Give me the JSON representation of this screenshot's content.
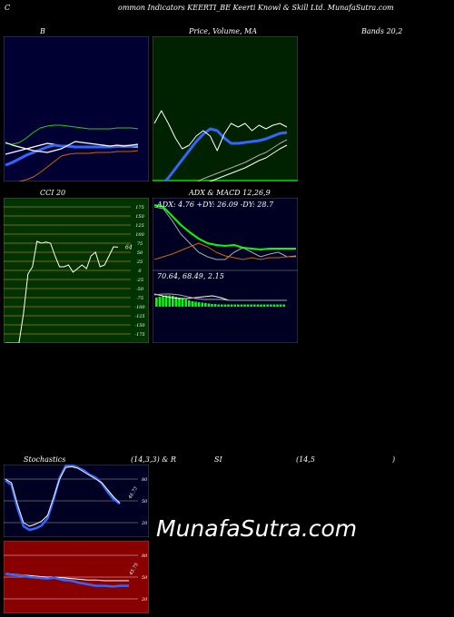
{
  "header": {
    "title": "ommon  Indicators KEERTI_BE Keerti  Knowl & Skill Ltd. MunafaSutra.com",
    "prefix": "C"
  },
  "labels": {
    "bb": "B",
    "price_ma": "Price,  Volume,  MA",
    "bands": "Bands 20,2",
    "cci": "CCI 20",
    "adx_macd": "ADX  & MACD 12,26,9",
    "stoch": "Stochastics",
    "stoch_params": "(14,3,3) & R",
    "si": "SI",
    "rsi_params": "(14,5",
    "close_paren": ")"
  },
  "watermark": "MunafaSutra.com",
  "colors": {
    "band_bg": "#000033",
    "price_bg": "#002200",
    "cci_bg": "#003300",
    "stoch_bg": "#000022",
    "rsi_bg": "#880000",
    "accent_blue": "#3366ff",
    "green": "#00ff00"
  },
  "chart_data": [
    {
      "name_ref": "bb",
      "type": "line",
      "series": [
        {
          "values": [
            118,
            119,
            117,
            112,
            106,
            101,
            99,
            98,
            98,
            99,
            100,
            101,
            102,
            102,
            102,
            102,
            101,
            101,
            101,
            102
          ]
        },
        {
          "values": [
            130,
            128,
            126,
            124,
            122,
            120,
            118,
            119,
            121,
            122,
            122,
            122,
            122,
            122,
            122,
            122,
            122,
            122,
            122,
            122
          ]
        },
        {
          "values": [
            166,
            163,
            160,
            158,
            155,
            150,
            144,
            138,
            132,
            130,
            129,
            129,
            129,
            128,
            128,
            128,
            127,
            127,
            127,
            126
          ]
        },
        {
          "values": [
            142,
            139,
            135,
            131,
            128,
            125,
            122,
            120,
            121,
            121,
            122,
            122,
            122,
            122,
            122,
            122,
            121,
            121,
            121,
            120
          ]
        },
        {
          "values": [
            117,
            120,
            122,
            124,
            126,
            127,
            128,
            126,
            124,
            120,
            116,
            117,
            118,
            119,
            120,
            121,
            120,
            121,
            120,
            119
          ]
        }
      ]
    },
    {
      "name_ref": "price_ma",
      "type": "line",
      "series": [
        {
          "values": [
            168,
            164,
            156,
            146,
            136,
            126,
            116,
            108,
            102,
            104,
            112,
            118,
            118,
            117,
            116,
            115,
            113,
            110,
            107,
            106
          ]
        },
        {
          "values": [
            190,
            185,
            180,
            177,
            174,
            171,
            167,
            163,
            160,
            157,
            154,
            151,
            148,
            145,
            141,
            137,
            134,
            129,
            124,
            120
          ]
        },
        {
          "values": [
            96,
            82,
            96,
            112,
            124,
            120,
            110,
            104,
            110,
            126,
            108,
            96,
            100,
            96,
            104,
            98,
            102,
            98,
            96,
            100
          ]
        }
      ]
    },
    {
      "name_ref": "cci",
      "type": "line",
      "y_ticks": [
        "175",
        "150",
        "125",
        "100",
        "75",
        "50",
        "25",
        "0",
        "-25",
        "-50",
        "-75",
        "-100",
        "-125",
        "-150",
        "-175"
      ],
      "last_value_label": "64",
      "series": [
        {
          "values": [
            -200,
            -200,
            -200,
            -200,
            -120,
            -10,
            10,
            80,
            75,
            78,
            75,
            40,
            10,
            10,
            15,
            -5,
            5,
            15,
            5,
            40,
            50,
            10,
            15,
            40,
            65,
            64
          ]
        }
      ]
    },
    {
      "name_ref": "adx_macd",
      "type": "line",
      "adx_text": "ADX: 4.76  +DY: 26.09  -DY: 28.7",
      "macd_text": "70.64,  68.49,  2.15",
      "series": [
        {
          "values": [
            72,
            70,
            60,
            50,
            42,
            35,
            30,
            28,
            27,
            28,
            25,
            24,
            23,
            24,
            24,
            24,
            24
          ]
        },
        {
          "values": [
            70,
            68,
            55,
            40,
            30,
            20,
            15,
            12,
            12,
            20,
            25,
            20,
            15,
            18,
            20,
            15,
            16
          ]
        },
        {
          "values": [
            12,
            15,
            18,
            22,
            26,
            30,
            26,
            20,
            16,
            14,
            12,
            14,
            12,
            14,
            14,
            15,
            15
          ]
        }
      ]
    },
    {
      "name_ref": "stoch",
      "type": "line",
      "y_ticks": [
        "80",
        "50",
        "20"
      ],
      "last_value_label": "46.73",
      "series": [
        {
          "values": [
            80,
            75,
            45,
            20,
            15,
            18,
            22,
            30,
            55,
            80,
            96,
            97,
            95,
            90,
            85,
            80,
            75,
            65,
            55,
            47
          ]
        },
        {
          "values": [
            78,
            72,
            40,
            15,
            10,
            12,
            16,
            26,
            52,
            82,
            98,
            99,
            96,
            92,
            86,
            82,
            74,
            62,
            52,
            46
          ]
        }
      ]
    },
    {
      "name_ref": "rsi",
      "type": "line",
      "y_ticks": [
        "80",
        "50",
        "20"
      ],
      "last_value_label": "45.75",
      "series": [
        {
          "values": [
            55,
            54,
            53,
            52,
            51,
            50,
            50,
            49,
            48,
            47,
            46,
            46,
            45,
            45,
            45,
            45
          ]
        },
        {
          "values": [
            54,
            53,
            52,
            50,
            49,
            48,
            49,
            46,
            45,
            42,
            40,
            38,
            38,
            37,
            38,
            38
          ]
        }
      ]
    }
  ]
}
